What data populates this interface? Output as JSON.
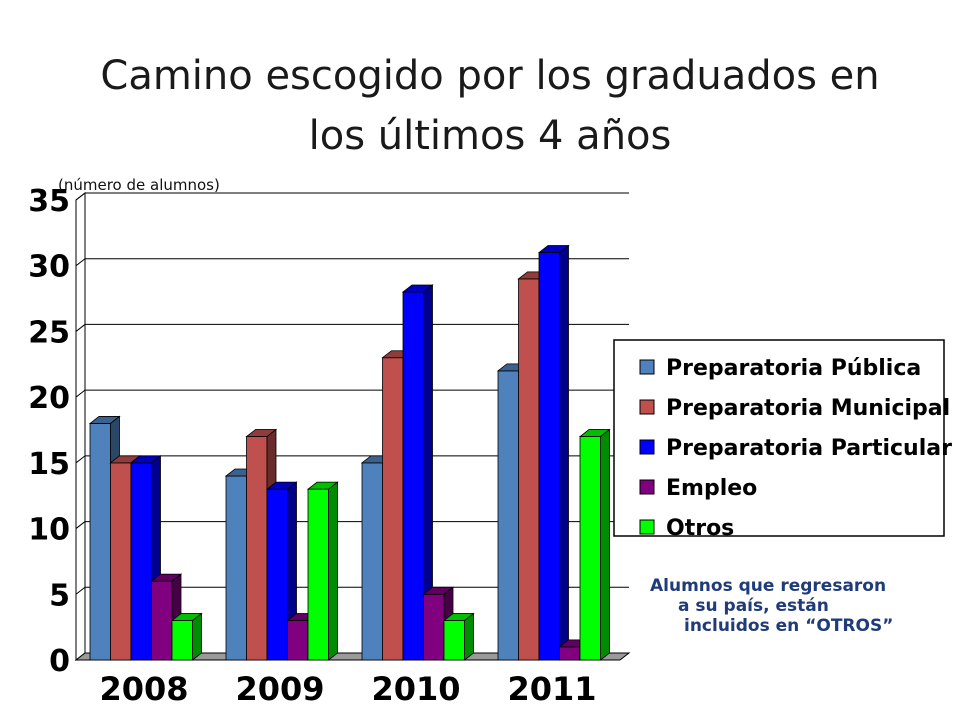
{
  "chart_data": {
    "type": "bar",
    "title_lines": [
      "Camino escogido por los graduados en",
      "los últimos 4 años"
    ],
    "ylabel": "(número de alumnos)",
    "categories": [
      "2008",
      "2009",
      "2010",
      "2011"
    ],
    "ylim": [
      0,
      35
    ],
    "yticks": [
      "0",
      "5",
      "10",
      "15",
      "20",
      "25",
      "30",
      "35"
    ],
    "grid": true,
    "legend_position": "right",
    "series": [
      {
        "name": "Preparatoria Pública",
        "color": "#4f81bd",
        "values": [
          18,
          14,
          15,
          22
        ]
      },
      {
        "name": "Preparatoria Municipal",
        "color": "#c0504d",
        "values": [
          15,
          17,
          23,
          29
        ]
      },
      {
        "name": "Preparatoria Particular",
        "color": "#0000ff",
        "values": [
          15,
          13,
          28,
          31
        ]
      },
      {
        "name": "Empleo",
        "color": "#800080",
        "values": [
          6,
          3,
          5,
          1
        ]
      },
      {
        "name": "Otros",
        "color": "#00ff00",
        "values": [
          3,
          13,
          3,
          17
        ]
      }
    ]
  },
  "note": {
    "lines": [
      "Alumnos que regresaron",
      "a su país,      están",
      "incluidos en “OTROS”"
    ]
  }
}
